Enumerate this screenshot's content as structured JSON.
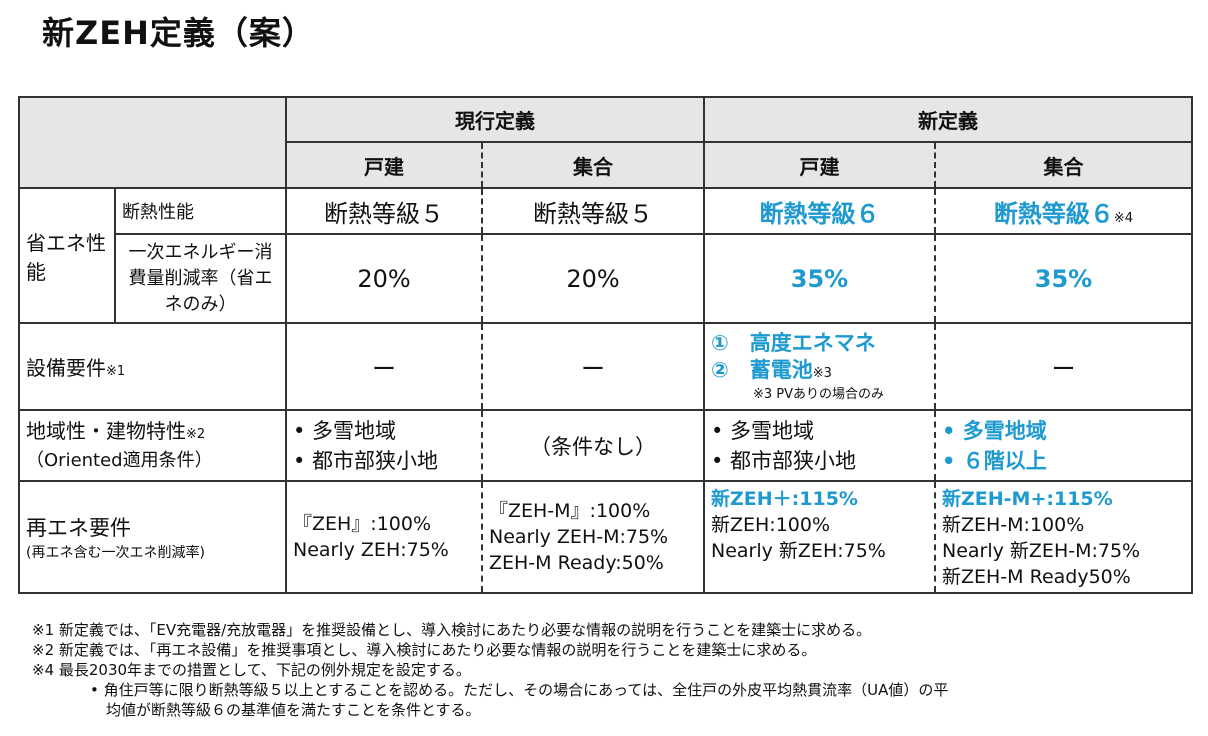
{
  "title": "新ZEH定義（案）",
  "header": {
    "current": "現行定義",
    "new": "新定義",
    "detached": "戸建",
    "collective": "集合"
  },
  "rows": {
    "energy_group": "省エネ性能",
    "insulation": {
      "label": "断熱性能",
      "cur_d": "断熱等級５",
      "cur_c": "断熱等級５",
      "new_d": "断熱等級６",
      "new_c": "断熱等級６",
      "new_c_note": "※4"
    },
    "reduction": {
      "label": "一次エネルギー消費量削減率（省エネのみ）",
      "cur_d": "20%",
      "cur_c": "20%",
      "new_d": "35%",
      "new_c": "35%"
    },
    "equipment": {
      "label": "設備要件",
      "note": "※1",
      "cur_d": "ー",
      "cur_c": "ー",
      "new_d_1": "①　高度エネマネ",
      "new_d_2": "②　蓄電池",
      "new_d_2_note": "※3",
      "new_d_sub": "※3 PVありの場合のみ",
      "new_c": "ー"
    },
    "regional": {
      "label": "地域性・建物特性",
      "note": "※2",
      "sub": "（Oriented適用条件）",
      "cur_d": [
        "• 多雪地域",
        "• 都市部狭小地"
      ],
      "cur_c": "（条件なし）",
      "new_d": [
        "• 多雪地域",
        "• 都市部狭小地"
      ],
      "new_c": [
        "• 多雪地域",
        "• ６階以上"
      ]
    },
    "renewable": {
      "label": "再エネ要件",
      "sub": "(再エネ含む一次エネ削減率)",
      "cur_d": [
        "『ZEH』:100%",
        "Nearly ZEH:75%"
      ],
      "cur_c": [
        "『ZEH-M』:100%",
        "Nearly ZEH-M:75%",
        "ZEH-M Ready:50%"
      ],
      "new_d_hl": "新ZEH＋:115%",
      "new_d": [
        "新ZEH:100%",
        "Nearly 新ZEH:75%"
      ],
      "new_c_hl": "新ZEH-M+:115%",
      "new_c": [
        "新ZEH-M:100%",
        "Nearly 新ZEH-M:75%",
        "新ZEH-M Ready50%"
      ]
    }
  },
  "notes": [
    "※1  新定義では、「EV充電器/充放電器」を推奨設備とし、導入検討にあたり必要な情報の説明を行うことを建築士に求める。",
    "※2  新定義では、「再エネ設備」を推奨事項とし、導入検討にあたり必要な情報の説明を行うことを建築士に求める。",
    "※4  最長2030年までの措置として、下記の例外規定を設定する。",
    "•  角住戸等に限り断熱等級５以上とすることを認める。ただし、その場合にあっては、全住戸の外皮平均熱貫流率（UA値）の平",
    "均値が断熱等級６の基準値を満たすことを条件とする。"
  ]
}
